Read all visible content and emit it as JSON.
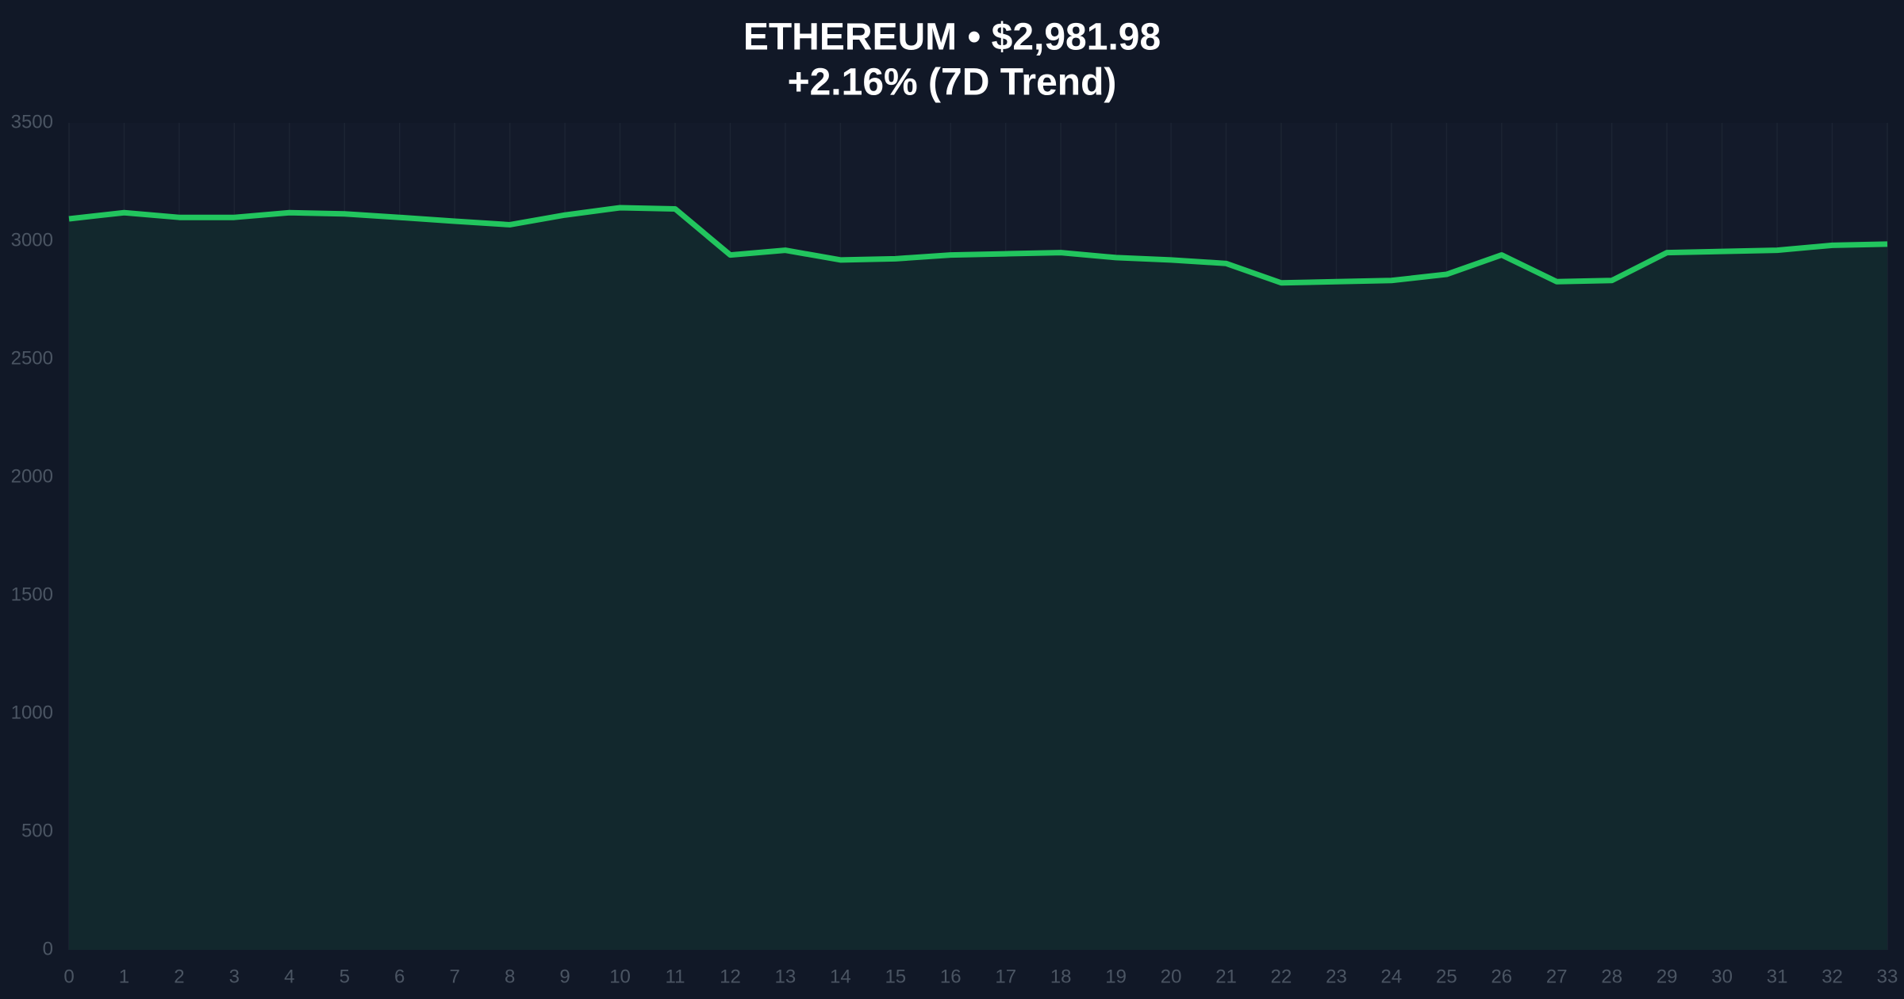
{
  "chart_data": {
    "type": "area",
    "title": "ETHEREUM • $2,981.98",
    "subtitle": "+2.16% (7D Trend)",
    "x": [
      0,
      1,
      2,
      3,
      4,
      5,
      6,
      7,
      8,
      9,
      10,
      11,
      12,
      13,
      14,
      15,
      16,
      17,
      18,
      19,
      20,
      21,
      22,
      23,
      24,
      25,
      26,
      27,
      28,
      29,
      30,
      31,
      32,
      33
    ],
    "values": [
      3094,
      3120,
      3100,
      3100,
      3120,
      3115,
      3100,
      3084,
      3069,
      3110,
      3141,
      3136,
      2941,
      2961,
      2920,
      2925,
      2941,
      2946,
      2951,
      2930,
      2920,
      2905,
      2823,
      2828,
      2833,
      2859,
      2941,
      2828,
      2833,
      2951,
      2956,
      2961,
      2982,
      2987
    ],
    "color": "#22c55e",
    "area_color": "#12282d",
    "xlim": [
      0,
      33
    ],
    "xticks": [
      0,
      1,
      2,
      3,
      4,
      5,
      6,
      7,
      8,
      9,
      10,
      11,
      12,
      13,
      14,
      15,
      16,
      17,
      18,
      19,
      20,
      21,
      22,
      23,
      24,
      25,
      26,
      27,
      28,
      29,
      30,
      31,
      32,
      33
    ],
    "ylim": [
      0,
      3500
    ],
    "yticks": [
      0,
      500,
      1000,
      1500,
      2000,
      2500,
      3000,
      3500
    ],
    "grid": "x"
  }
}
